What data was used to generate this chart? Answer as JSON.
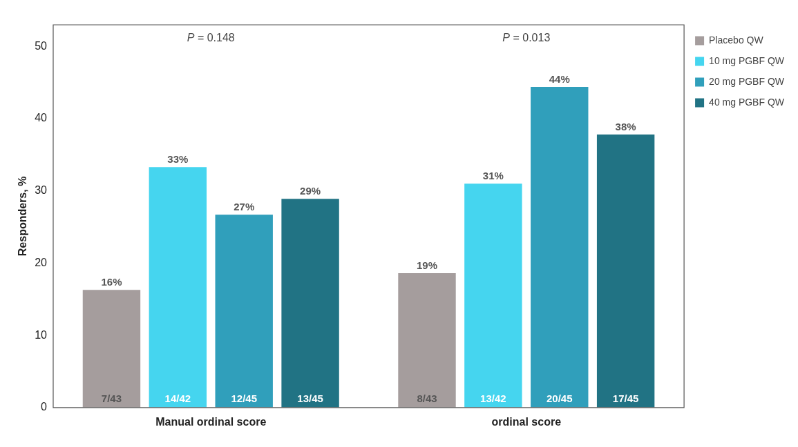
{
  "chart_data": {
    "type": "bar",
    "ylabel": "Responders, %",
    "categories": [
      "Manual ordinal score",
      "ordinal score"
    ],
    "series": [
      {
        "name": "Placebo QW",
        "color": "#a59d9d",
        "values": [
          16.3,
          18.6
        ],
        "value_labels": [
          "16%",
          "19%"
        ]
      },
      {
        "name": "10 mg PGBF QW",
        "color": "#45d5ef",
        "values": [
          33.3,
          31.0
        ],
        "value_labels": [
          "33%",
          "31%"
        ]
      },
      {
        "name": "20 mg PGBF QW",
        "color": "#309fbb",
        "values": [
          26.7,
          44.4
        ],
        "value_labels": [
          "27%",
          "44%"
        ]
      },
      {
        "name": "40 mg PGBF QW",
        "color": "#217384",
        "values": [
          28.9,
          37.8
        ],
        "value_labels": [
          "29%",
          "38%"
        ]
      }
    ],
    "ylim": [
      0,
      53
    ],
    "yticks": [
      0,
      10,
      20,
      30,
      40,
      50
    ],
    "grid": false,
    "legend": "right",
    "annotations": [
      "P = 0.148",
      "P = 0.013",
      "7/43",
      "14/42",
      "12/45",
      "13/45",
      "8/43",
      "13/42",
      "20/45",
      "17/45"
    ]
  }
}
